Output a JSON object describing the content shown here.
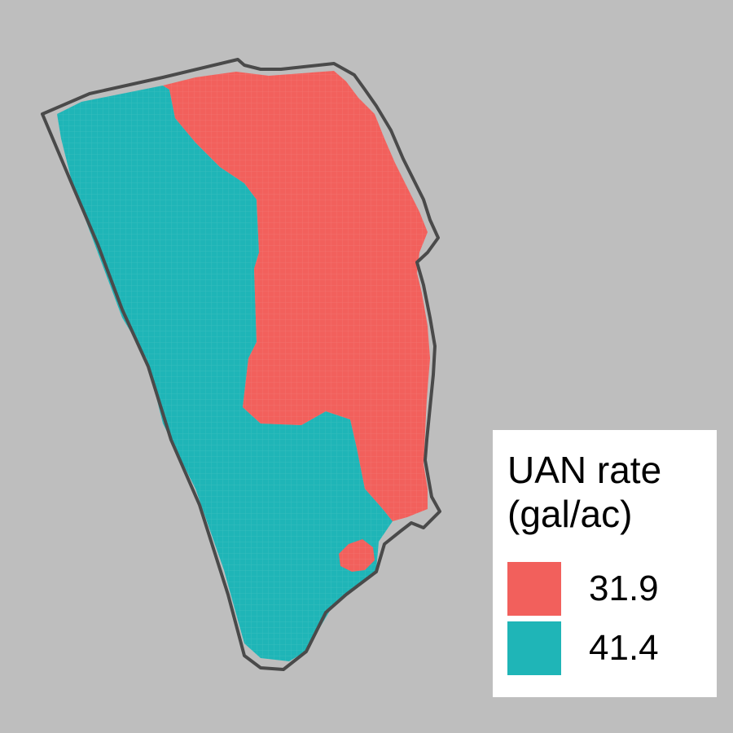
{
  "legend": {
    "title_line1": "UAN rate",
    "title_line2": "(gal/ac)",
    "items": [
      {
        "label": "31.9",
        "color": "#F8766D"
      },
      {
        "label": "41.4",
        "color": "#00BFC4"
      }
    ]
  },
  "colors": {
    "background": "#bebebe",
    "boundary": "#4d4d4d",
    "rate_low": "#F8766D",
    "rate_high": "#00BFC4"
  }
}
